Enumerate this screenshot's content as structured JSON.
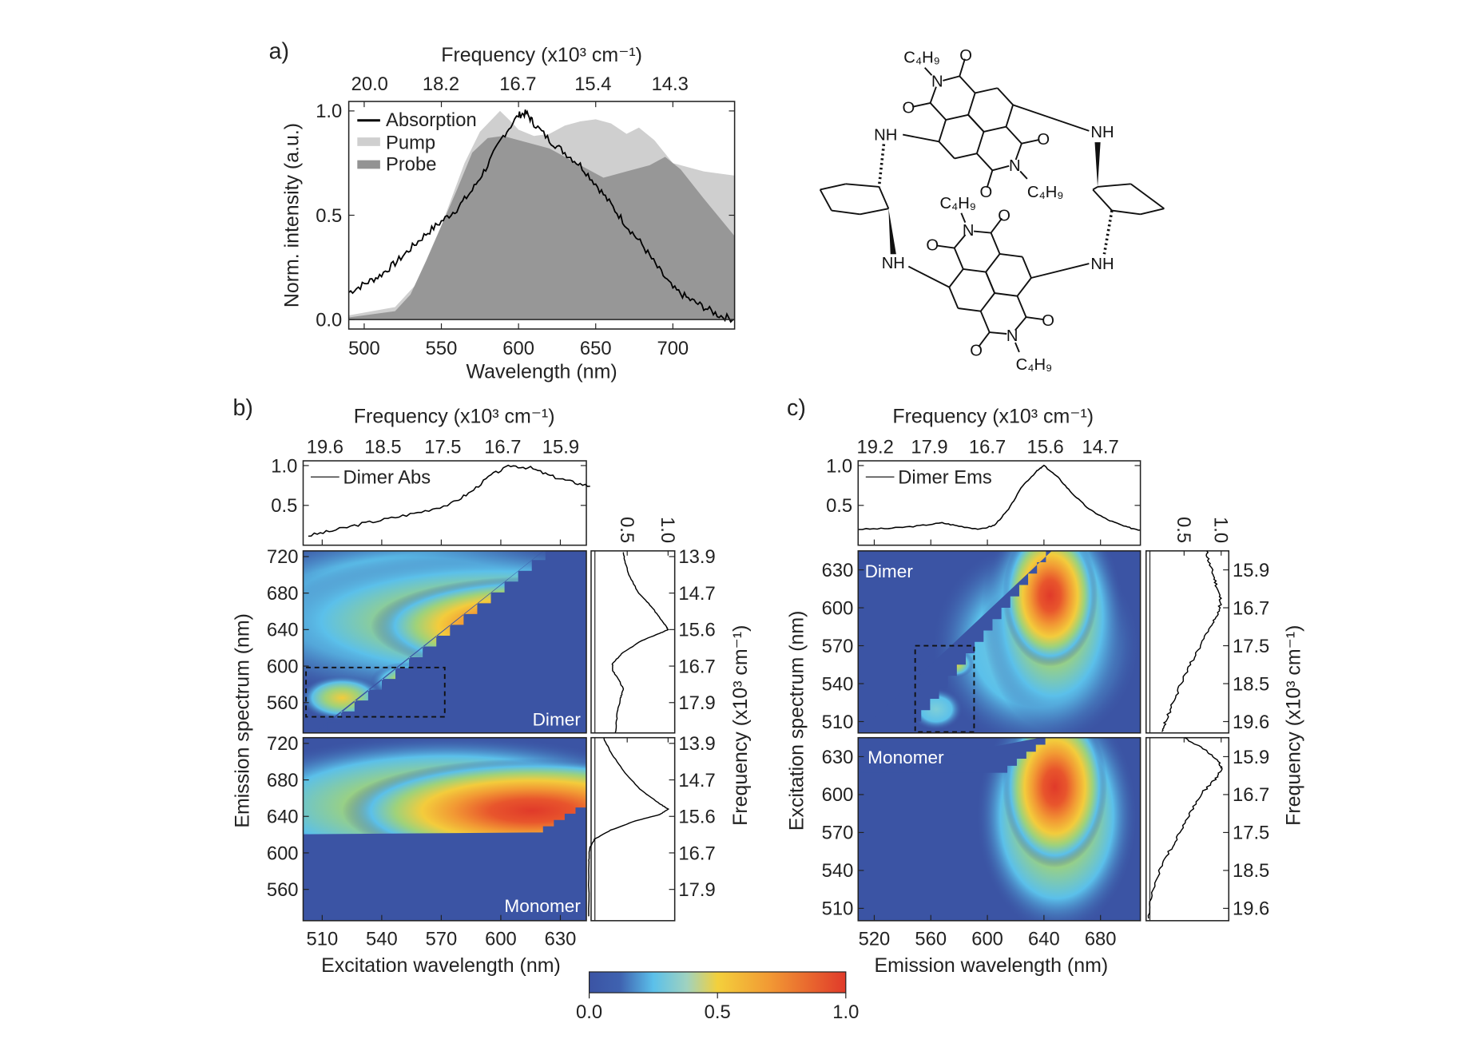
{
  "chart_data": [
    {
      "panel_label": "a)",
      "type": "area",
      "xlabel": "Wavelength (nm)",
      "ylabel": "Norm. intensity (a.u.)",
      "top_axis_label": "Frequency (x10³ cm⁻¹)",
      "xlim": [
        490,
        740
      ],
      "ylim": [
        -0.05,
        1.05
      ],
      "x_ticks": [
        "500",
        "550",
        "600",
        "650",
        "700"
      ],
      "y_ticks": [
        "0.0",
        "0.5",
        "1.0"
      ],
      "top_ticks": [
        "20.0",
        "18.2",
        "16.7",
        "15.4",
        "14.3"
      ],
      "legend_position": "top-left",
      "series": [
        {
          "name": "Pump",
          "style": "filled",
          "color": "#cfcfcf",
          "points": [
            [
              490,
              0.02
            ],
            [
              520,
              0.06
            ],
            [
              535,
              0.18
            ],
            [
              545,
              0.35
            ],
            [
              555,
              0.55
            ],
            [
              565,
              0.75
            ],
            [
              575,
              0.9
            ],
            [
              588,
              1.0
            ],
            [
              595,
              0.95
            ],
            [
              600,
              0.91
            ],
            [
              610,
              0.88
            ],
            [
              620,
              0.89
            ],
            [
              630,
              0.93
            ],
            [
              640,
              0.95
            ],
            [
              650,
              0.96
            ],
            [
              660,
              0.94
            ],
            [
              670,
              0.89
            ],
            [
              678,
              0.92
            ],
            [
              688,
              0.86
            ],
            [
              700,
              0.75
            ],
            [
              720,
              0.71
            ],
            [
              740,
              0.69
            ]
          ]
        },
        {
          "name": "Probe",
          "style": "filled",
          "color": "#939393",
          "points": [
            [
              490,
              0.01
            ],
            [
              520,
              0.04
            ],
            [
              530,
              0.12
            ],
            [
              540,
              0.28
            ],
            [
              550,
              0.45
            ],
            [
              560,
              0.62
            ],
            [
              570,
              0.8
            ],
            [
              580,
              0.87
            ],
            [
              590,
              0.88
            ],
            [
              600,
              0.86
            ],
            [
              620,
              0.82
            ],
            [
              640,
              0.74
            ],
            [
              655,
              0.68
            ],
            [
              670,
              0.71
            ],
            [
              685,
              0.74
            ],
            [
              695,
              0.78
            ],
            [
              705,
              0.72
            ],
            [
              720,
              0.58
            ],
            [
              740,
              0.4
            ]
          ]
        },
        {
          "name": "Absorption",
          "style": "line",
          "color": "#000000",
          "points": [
            [
              490,
              0.13
            ],
            [
              500,
              0.17
            ],
            [
              510,
              0.21
            ],
            [
              520,
              0.27
            ],
            [
              530,
              0.34
            ],
            [
              540,
              0.41
            ],
            [
              550,
              0.47
            ],
            [
              560,
              0.53
            ],
            [
              570,
              0.62
            ],
            [
              580,
              0.74
            ],
            [
              590,
              0.88
            ],
            [
              600,
              0.98
            ],
            [
              605,
              0.99
            ],
            [
              610,
              0.94
            ],
            [
              620,
              0.86
            ],
            [
              630,
              0.8
            ],
            [
              640,
              0.74
            ],
            [
              650,
              0.65
            ],
            [
              660,
              0.55
            ],
            [
              670,
              0.45
            ],
            [
              680,
              0.36
            ],
            [
              690,
              0.25
            ],
            [
              700,
              0.15
            ],
            [
              710,
              0.1
            ],
            [
              720,
              0.06
            ],
            [
              730,
              0.02
            ],
            [
              740,
              0.0
            ]
          ]
        }
      ]
    },
    {
      "panel_label": "b)",
      "type": "heatmap",
      "top_axis_label": "Frequency (x10³ cm⁻¹)",
      "top_ticks": [
        "19.6",
        "18.5",
        "17.5",
        "16.7",
        "15.9"
      ],
      "top_spectrum": {
        "name": "Dimer Abs",
        "y_ticks": [
          "0.5",
          "1.0"
        ],
        "points": [
          [
            503,
            0.12
          ],
          [
            515,
            0.18
          ],
          [
            530,
            0.27
          ],
          [
            545,
            0.34
          ],
          [
            560,
            0.42
          ],
          [
            575,
            0.52
          ],
          [
            585,
            0.67
          ],
          [
            595,
            0.88
          ],
          [
            605,
            1.0
          ],
          [
            615,
            0.97
          ],
          [
            625,
            0.87
          ],
          [
            635,
            0.8
          ],
          [
            645,
            0.74
          ]
        ]
      },
      "xlabel": "Excitation wavelength (nm)",
      "x_ticks": [
        "510",
        "540",
        "570",
        "600",
        "630"
      ],
      "ylabel": "Emission spectrum (nm)",
      "y_ticks": [
        "720",
        "680",
        "640",
        "600",
        "560"
      ],
      "right_label": "Frequency (x10³ cm⁻¹)",
      "right_ticks": [
        "13.9",
        "14.7",
        "15.6",
        "16.7",
        "17.9"
      ],
      "side_ticks": [
        "0.5",
        "1.0"
      ],
      "maps": [
        {
          "label": "Dimer",
          "peak": {
            "excitation_nm": 615,
            "emission_nm": 640
          },
          "side_spectrum": [
            [
              728,
              0.45
            ],
            [
              715,
              0.47
            ],
            [
              700,
              0.52
            ],
            [
              680,
              0.64
            ],
            [
              665,
              0.8
            ],
            [
              650,
              0.92
            ],
            [
              643,
              0.98
            ],
            [
              640,
              1.0
            ],
            [
              636,
              0.9
            ],
            [
              628,
              0.68
            ],
            [
              615,
              0.45
            ],
            [
              603,
              0.32
            ],
            [
              595,
              0.32
            ],
            [
              585,
              0.4
            ],
            [
              575,
              0.45
            ],
            [
              565,
              0.42
            ],
            [
              550,
              0.38
            ],
            [
              530,
              0.36
            ],
            [
              522,
              0.35
            ]
          ],
          "boxed_region": {
            "excitation_nm": [
              502,
              572
            ],
            "emission_nm": [
              545,
              597
            ]
          }
        },
        {
          "label": "Monomer",
          "peak": {
            "excitation_nm": 618,
            "emission_nm": 645
          },
          "side_spectrum": [
            [
              728,
              0.2
            ],
            [
              710,
              0.3
            ],
            [
              690,
              0.45
            ],
            [
              670,
              0.65
            ],
            [
              655,
              0.88
            ],
            [
              648,
              1.0
            ],
            [
              642,
              0.9
            ],
            [
              635,
              0.6
            ],
            [
              625,
              0.3
            ],
            [
              615,
              0.1
            ],
            [
              605,
              0.04
            ],
            [
              590,
              0.03
            ],
            [
              522,
              0.03
            ]
          ]
        }
      ]
    },
    {
      "panel_label": "c)",
      "type": "heatmap",
      "top_axis_label": "Frequency (x10³ cm⁻¹)",
      "top_ticks": [
        "19.2",
        "17.9",
        "16.7",
        "15.6",
        "14.7"
      ],
      "top_spectrum": {
        "name": "Dimer Ems",
        "y_ticks": [
          "0.5",
          "1.0"
        ],
        "points": [
          [
            509,
            0.2
          ],
          [
            530,
            0.21
          ],
          [
            550,
            0.24
          ],
          [
            568,
            0.28
          ],
          [
            580,
            0.24
          ],
          [
            595,
            0.2
          ],
          [
            605,
            0.25
          ],
          [
            615,
            0.45
          ],
          [
            625,
            0.75
          ],
          [
            635,
            0.93
          ],
          [
            640,
            1.0
          ],
          [
            650,
            0.85
          ],
          [
            660,
            0.65
          ],
          [
            672,
            0.45
          ],
          [
            685,
            0.32
          ],
          [
            698,
            0.23
          ],
          [
            708,
            0.19
          ]
        ]
      },
      "xlabel": "Emission wavelength (nm)",
      "x_ticks": [
        "520",
        "560",
        "600",
        "640",
        "680"
      ],
      "ylabel": "Excitation spectrum (nm)",
      "y_ticks": [
        "630",
        "600",
        "570",
        "540",
        "510"
      ],
      "right_label": "Frequency (x10³ cm⁻¹)",
      "right_ticks": [
        "15.9",
        "16.7",
        "17.5",
        "18.5",
        "19.6"
      ],
      "side_ticks": [
        "0.5",
        "1.0"
      ],
      "maps": [
        {
          "label": "Dimer",
          "peak": {
            "emission_nm": 642,
            "excitation_nm": 615
          },
          "side_spectrum": [
            [
              645,
              0.8
            ],
            [
              635,
              0.84
            ],
            [
              625,
              0.9
            ],
            [
              615,
              0.95
            ],
            [
              605,
              1.0
            ],
            [
              595,
              0.95
            ],
            [
              585,
              0.85
            ],
            [
              570,
              0.72
            ],
            [
              555,
              0.58
            ],
            [
              540,
              0.46
            ],
            [
              525,
              0.35
            ],
            [
              510,
              0.25
            ],
            [
              502,
              0.2
            ]
          ],
          "boxed_region": {
            "emission_nm": [
              552,
              593
            ],
            "excitation_nm": [
              502,
              570
            ]
          }
        },
        {
          "label": "Monomer",
          "peak": {
            "emission_nm": 645,
            "excitation_nm": 615
          },
          "side_spectrum": [
            [
              645,
              0.5
            ],
            [
              635,
              0.8
            ],
            [
              625,
              0.97
            ],
            [
              620,
              1.0
            ],
            [
              612,
              0.92
            ],
            [
              600,
              0.72
            ],
            [
              585,
              0.58
            ],
            [
              570,
              0.45
            ],
            [
              555,
              0.3
            ],
            [
              540,
              0.17
            ],
            [
              520,
              0.06
            ],
            [
              502,
              0.02
            ]
          ]
        }
      ]
    }
  ],
  "colorbar": {
    "ticks": [
      "0.0",
      "0.5",
      "1.0"
    ],
    "colors": [
      "#3b54a4",
      "#5bc0ea",
      "#f5d23c",
      "#f08a30",
      "#e03a2a"
    ]
  },
  "molecule": {
    "labels": [
      "C₄H₉",
      "N",
      "O",
      "O",
      "NH",
      "NH",
      "O",
      "N",
      "O",
      "C₄H₉",
      "C₄H₉",
      "N",
      "O",
      "O",
      "NH",
      "NH",
      "O",
      "N",
      "O",
      "C₄H₉"
    ]
  }
}
